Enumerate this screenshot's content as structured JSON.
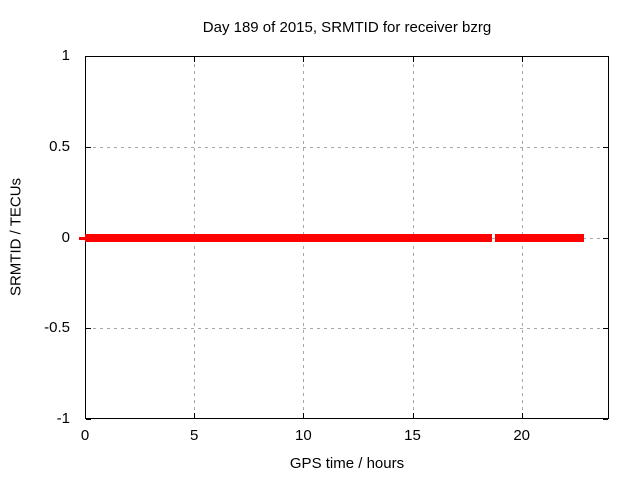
{
  "chart_data": {
    "type": "line",
    "title": "Day 189 of 2015, SRMTID for receiver bzrg",
    "xlabel": "GPS time / hours",
    "ylabel": "SRMTID / TECUs",
    "xlim": [
      0,
      24
    ],
    "ylim": [
      -1,
      1
    ],
    "xticks": [
      0,
      5,
      10,
      15,
      20
    ],
    "xtick_labels": [
      "0",
      "5",
      "10",
      "15",
      "20"
    ],
    "yticks": [
      1,
      0.5,
      0,
      -0.5,
      -1
    ],
    "ytick_labels": [
      "1",
      "0.5",
      "0",
      "-0.5",
      "-1"
    ],
    "grid": true,
    "legend": "none",
    "series": [
      {
        "name": "SRMTID",
        "color": "#ff0000",
        "y_value": 0,
        "segments_x_hours": [
          [
            0,
            18.65
          ],
          [
            18.8,
            22.85
          ]
        ]
      }
    ]
  },
  "colors": {
    "background": "#ffffff",
    "border": "#000000",
    "grid": "#a8a8a8",
    "text": "#000000",
    "series": "#ff0000"
  }
}
